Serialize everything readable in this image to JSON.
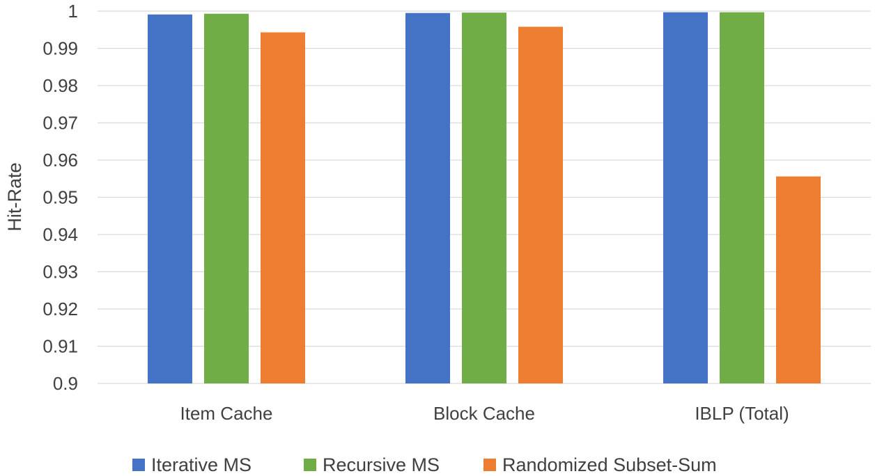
{
  "chart_data": {
    "type": "bar",
    "categories": [
      "Item Cache",
      "Block Cache",
      "IBLP (Total)"
    ],
    "series": [
      {
        "name": "Iterative MS",
        "color": "#4472C4",
        "values": [
          0.9991,
          0.9995,
          0.9997
        ]
      },
      {
        "name": "Recursive MS",
        "color": "#70AD47",
        "values": [
          0.9993,
          0.9996,
          0.9997
        ]
      },
      {
        "name": "Randomized Subset-Sum",
        "color": "#ED7D31",
        "values": [
          0.9943,
          0.9958,
          0.9556
        ]
      }
    ],
    "xlabel": "",
    "ylabel": "Hit-Rate",
    "ylim": [
      0.9,
      1.0
    ],
    "yticks": [
      "0.9",
      "0.91",
      "0.92",
      "0.93",
      "0.94",
      "0.95",
      "0.96",
      "0.97",
      "0.98",
      "0.99",
      "1"
    ],
    "grid": true,
    "legend_position": "bottom"
  }
}
